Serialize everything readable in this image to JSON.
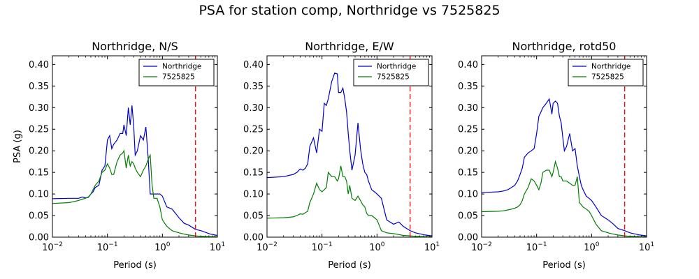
{
  "suptitle": "PSA for station comp, Northridge vs 7525825",
  "colors": {
    "series1": "#0000cc",
    "series2": "#007f00",
    "marker": "#ff0000",
    "axis": "#000000"
  },
  "chart_data": [
    {
      "type": "line",
      "title": "Northridge, N/S",
      "xlabel": "Period (s)",
      "ylabel": "PSA (g)",
      "xscale": "log",
      "xlim": [
        0.01,
        10
      ],
      "ylim": [
        0,
        0.42
      ],
      "xticks": [
        0.01,
        0.1,
        1,
        10
      ],
      "yticks": [
        "0.00",
        "0.05",
        "0.10",
        "0.15",
        "0.20",
        "0.25",
        "0.30",
        "0.35",
        "0.40"
      ],
      "legend": "top-right",
      "vline": 4,
      "series": [
        {
          "name": "Northridge",
          "x": [
            0.01,
            0.02,
            0.03,
            0.035,
            0.04,
            0.045,
            0.05,
            0.055,
            0.06,
            0.07,
            0.08,
            0.09,
            0.1,
            0.11,
            0.12,
            0.13,
            0.15,
            0.17,
            0.19,
            0.2,
            0.22,
            0.24,
            0.26,
            0.28,
            0.3,
            0.32,
            0.35,
            0.4,
            0.45,
            0.5,
            0.55,
            0.6,
            0.65,
            0.7,
            0.8,
            0.9,
            1.0,
            1.2,
            1.5,
            2.0,
            2.5,
            3.0,
            4.0,
            5.0,
            7.5,
            10.0
          ],
          "y": [
            0.089,
            0.09,
            0.09,
            0.093,
            0.091,
            0.092,
            0.1,
            0.105,
            0.115,
            0.12,
            0.155,
            0.165,
            0.225,
            0.235,
            0.205,
            0.215,
            0.225,
            0.24,
            0.24,
            0.26,
            0.235,
            0.3,
            0.26,
            0.305,
            0.26,
            0.19,
            0.2,
            0.235,
            0.225,
            0.255,
            0.185,
            0.1,
            0.1,
            0.1,
            0.1,
            0.1,
            0.095,
            0.07,
            0.065,
            0.045,
            0.032,
            0.028,
            0.018,
            0.015,
            0.007,
            0.004
          ]
        },
        {
          "name": "7525825",
          "x": [
            0.01,
            0.02,
            0.03,
            0.035,
            0.04,
            0.045,
            0.05,
            0.055,
            0.06,
            0.07,
            0.08,
            0.09,
            0.1,
            0.11,
            0.12,
            0.13,
            0.15,
            0.17,
            0.19,
            0.2,
            0.22,
            0.24,
            0.26,
            0.28,
            0.3,
            0.32,
            0.35,
            0.4,
            0.45,
            0.5,
            0.55,
            0.6,
            0.65,
            0.7,
            0.8,
            0.9,
            1.0,
            1.2,
            1.5,
            2.0,
            2.5,
            3.0,
            4.0,
            5.0,
            7.5,
            10.0
          ],
          "y": [
            0.078,
            0.08,
            0.085,
            0.088,
            0.09,
            0.093,
            0.1,
            0.11,
            0.12,
            0.13,
            0.15,
            0.155,
            0.17,
            0.16,
            0.145,
            0.145,
            0.175,
            0.19,
            0.195,
            0.2,
            0.16,
            0.19,
            0.165,
            0.175,
            0.17,
            0.16,
            0.15,
            0.14,
            0.155,
            0.165,
            0.18,
            0.19,
            0.12,
            0.09,
            0.09,
            0.07,
            0.04,
            0.025,
            0.015,
            0.01,
            0.007,
            0.005,
            0.003,
            0.002,
            0.001,
            0.001
          ]
        }
      ]
    },
    {
      "type": "line",
      "title": "Northridge, E/W",
      "xlabel": "Period (s)",
      "ylabel": "",
      "xscale": "log",
      "xlim": [
        0.01,
        10
      ],
      "ylim": [
        0,
        0.42
      ],
      "xticks": [
        0.01,
        0.1,
        1,
        10
      ],
      "yticks": [
        "0.00",
        "0.05",
        "0.10",
        "0.15",
        "0.20",
        "0.25",
        "0.30",
        "0.35",
        "0.40"
      ],
      "legend": "top-right",
      "vline": 4,
      "series": [
        {
          "name": "Northridge",
          "x": [
            0.01,
            0.02,
            0.025,
            0.03,
            0.035,
            0.04,
            0.045,
            0.05,
            0.055,
            0.06,
            0.07,
            0.08,
            0.09,
            0.1,
            0.11,
            0.12,
            0.13,
            0.15,
            0.17,
            0.19,
            0.2,
            0.22,
            0.24,
            0.26,
            0.28,
            0.3,
            0.32,
            0.35,
            0.4,
            0.45,
            0.5,
            0.55,
            0.6,
            0.65,
            0.7,
            0.8,
            0.9,
            1.0,
            1.2,
            1.5,
            2.0,
            2.5,
            3.0,
            4.0,
            5.0,
            7.5,
            10.0
          ],
          "y": [
            0.138,
            0.14,
            0.143,
            0.145,
            0.15,
            0.158,
            0.155,
            0.16,
            0.17,
            0.21,
            0.23,
            0.195,
            0.25,
            0.245,
            0.31,
            0.305,
            0.32,
            0.36,
            0.38,
            0.378,
            0.335,
            0.335,
            0.345,
            0.32,
            0.29,
            0.24,
            0.2,
            0.155,
            0.19,
            0.265,
            0.205,
            0.17,
            0.15,
            0.145,
            0.13,
            0.11,
            0.105,
            0.1,
            0.09,
            0.04,
            0.03,
            0.035,
            0.025,
            0.015,
            0.01,
            0.005,
            0.003
          ]
        },
        {
          "name": "7525825",
          "x": [
            0.01,
            0.02,
            0.025,
            0.03,
            0.035,
            0.04,
            0.045,
            0.05,
            0.055,
            0.06,
            0.07,
            0.08,
            0.09,
            0.1,
            0.11,
            0.12,
            0.13,
            0.15,
            0.17,
            0.19,
            0.2,
            0.22,
            0.24,
            0.26,
            0.28,
            0.3,
            0.32,
            0.35,
            0.4,
            0.45,
            0.5,
            0.55,
            0.6,
            0.65,
            0.7,
            0.8,
            0.9,
            1.0,
            1.2,
            1.5,
            2.0,
            2.5,
            3.0,
            4.0,
            5.0,
            7.5,
            10.0
          ],
          "y": [
            0.044,
            0.045,
            0.046,
            0.047,
            0.05,
            0.054,
            0.053,
            0.057,
            0.06,
            0.08,
            0.1,
            0.125,
            0.11,
            0.105,
            0.11,
            0.115,
            0.15,
            0.14,
            0.14,
            0.13,
            0.135,
            0.165,
            0.14,
            0.14,
            0.13,
            0.1,
            0.12,
            0.09,
            0.085,
            0.095,
            0.085,
            0.075,
            0.07,
            0.055,
            0.05,
            0.05,
            0.045,
            0.04,
            0.015,
            0.01,
            0.008,
            0.006,
            0.004,
            0.003,
            0.002,
            0.001,
            0.001
          ]
        }
      ]
    },
    {
      "type": "line",
      "title": "Northridge, rotd50",
      "xlabel": "Period (s)",
      "ylabel": "",
      "xscale": "log",
      "xlim": [
        0.01,
        10
      ],
      "ylim": [
        0,
        0.42
      ],
      "xticks": [
        0.01,
        0.1,
        1,
        10
      ],
      "yticks": [
        "0.00",
        "0.05",
        "0.10",
        "0.15",
        "0.20",
        "0.25",
        "0.30",
        "0.35",
        "0.40"
      ],
      "legend": "top-right",
      "vline": 4,
      "series": [
        {
          "name": "Northridge",
          "x": [
            0.01,
            0.02,
            0.025,
            0.03,
            0.035,
            0.04,
            0.045,
            0.05,
            0.055,
            0.06,
            0.07,
            0.08,
            0.09,
            0.1,
            0.11,
            0.12,
            0.13,
            0.15,
            0.17,
            0.19,
            0.2,
            0.22,
            0.24,
            0.26,
            0.28,
            0.3,
            0.32,
            0.35,
            0.4,
            0.45,
            0.5,
            0.55,
            0.6,
            0.65,
            0.7,
            0.8,
            0.9,
            1.0,
            1.2,
            1.5,
            2.0,
            2.5,
            3.0,
            4.0,
            5.0,
            7.5,
            10.0
          ],
          "y": [
            0.103,
            0.105,
            0.107,
            0.11,
            0.115,
            0.12,
            0.13,
            0.145,
            0.16,
            0.185,
            0.195,
            0.2,
            0.205,
            0.24,
            0.28,
            0.29,
            0.3,
            0.31,
            0.32,
            0.285,
            0.31,
            0.315,
            0.31,
            0.28,
            0.265,
            0.23,
            0.2,
            0.21,
            0.24,
            0.2,
            0.205,
            0.165,
            0.14,
            0.12,
            0.11,
            0.095,
            0.09,
            0.085,
            0.07,
            0.05,
            0.04,
            0.03,
            0.02,
            0.015,
            0.01,
            0.005,
            0.003
          ]
        },
        {
          "name": "7525825",
          "x": [
            0.01,
            0.02,
            0.025,
            0.03,
            0.035,
            0.04,
            0.045,
            0.05,
            0.055,
            0.06,
            0.07,
            0.08,
            0.09,
            0.1,
            0.11,
            0.12,
            0.13,
            0.15,
            0.17,
            0.19,
            0.2,
            0.22,
            0.24,
            0.26,
            0.28,
            0.3,
            0.32,
            0.35,
            0.4,
            0.45,
            0.5,
            0.55,
            0.6,
            0.65,
            0.7,
            0.8,
            0.9,
            1.0,
            1.2,
            1.5,
            2.0,
            2.5,
            3.0,
            4.0,
            5.0,
            7.5,
            10.0
          ],
          "y": [
            0.059,
            0.06,
            0.061,
            0.063,
            0.065,
            0.067,
            0.07,
            0.075,
            0.085,
            0.1,
            0.115,
            0.135,
            0.13,
            0.12,
            0.11,
            0.125,
            0.15,
            0.155,
            0.155,
            0.14,
            0.15,
            0.175,
            0.16,
            0.14,
            0.14,
            0.13,
            0.13,
            0.13,
            0.125,
            0.12,
            0.12,
            0.14,
            0.08,
            0.075,
            0.07,
            0.065,
            0.06,
            0.05,
            0.03,
            0.015,
            0.01,
            0.007,
            0.005,
            0.003,
            0.002,
            0.001,
            0.001
          ]
        }
      ]
    }
  ]
}
